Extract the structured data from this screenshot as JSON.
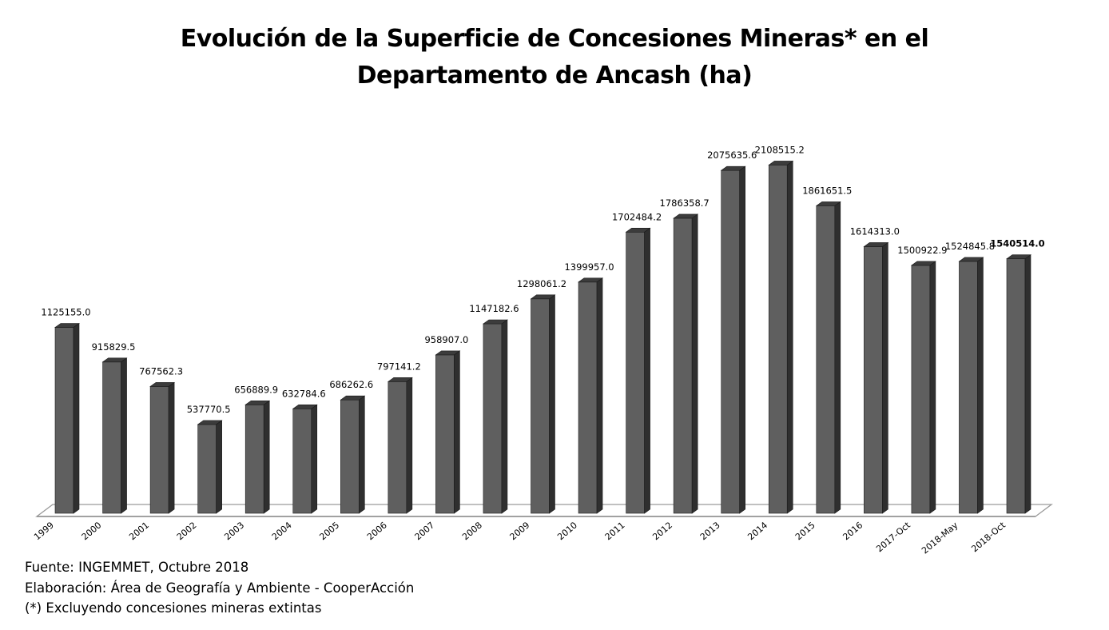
{
  "title": {
    "line1": "Evolución de la Superficie de Concesiones Mineras* en el",
    "line2": "Departamento de Ancash (ha)"
  },
  "notes": {
    "source": "Fuente: INGEMMET, Octubre 2018",
    "elaboration": "Elaboración: Área de Geografía y Ambiente - CooperAcción",
    "footnote": "(*) Excluyendo concesiones mineras extintas"
  },
  "colors": {
    "bar_front": "#5f5f5f",
    "bar_side": "#2f2f2f",
    "bar_top": "#3c3c3c",
    "floor": "#9a9a9a"
  },
  "chart_data": {
    "type": "bar",
    "style": "3d-column",
    "title": "Evolución de la Superficie de Concesiones Mineras* en el Departamento de Ancash (ha)",
    "xlabel": "",
    "ylabel": "",
    "ylim": [
      0,
      2300000
    ],
    "grid": false,
    "legend": "none",
    "categories": [
      "1999",
      "2000",
      "2001",
      "2002",
      "2003",
      "2004",
      "2005",
      "2006",
      "2007",
      "2008",
      "2009",
      "2010",
      "2011",
      "2012",
      "2013",
      "2014",
      "2015",
      "2016",
      "2017-Oct",
      "2018-May",
      "2018-Oct"
    ],
    "values": [
      1125155.0,
      915829.5,
      767562.3,
      537770.5,
      656889.9,
      632784.6,
      686262.6,
      797141.2,
      958907.0,
      1147182.6,
      1298061.2,
      1399957.0,
      1702484.2,
      1786358.7,
      2075635.6,
      2108515.2,
      1861651.5,
      1614313.0,
      1500922.9,
      1524845.8,
      1540514.0
    ],
    "data_labels": [
      "1125155.0",
      "915829.5",
      "767562.3",
      "537770.5",
      "656889.9",
      "632784.6",
      "686262.6",
      "797141.2",
      "958907.0",
      "1147182.6",
      "1298061.2",
      "1399957.0",
      "1702484.2",
      "1786358.7",
      "2075635.6",
      "2108515.2",
      "1861651.5",
      "1614313.0",
      "1500922.9",
      "1524845.8",
      "1540514.0"
    ],
    "bold_labels": [
      "1540514.0"
    ]
  }
}
